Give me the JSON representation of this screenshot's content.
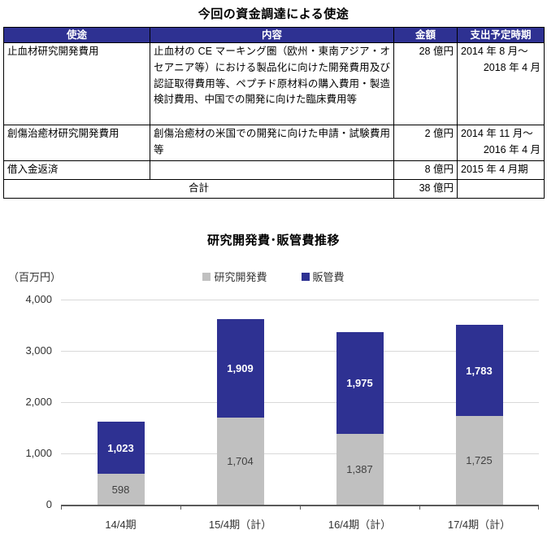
{
  "doc_title": "今回の資金調達による使途",
  "table": {
    "headers": [
      "使途",
      "内容",
      "金額",
      "支出予定時期"
    ],
    "rows": [
      {
        "use": "止血材研究開発費用",
        "detail": "止血材の CE マーキング圏（欧州・東南アジア・オセアニア等）における製品化に向けた開発費用及び認証取得費用等、ペプチド原材料の購入費用・製造検討費用、中国での開発に向けた臨床費用等",
        "amount": "28 億円",
        "period_line1": "2014 年 8 月～",
        "period_line2": "2018 年 4 月"
      },
      {
        "use": "創傷治癒材研究開発費用",
        "detail": "創傷治癒材の米国での開発に向けた申請・試験費用等",
        "amount": "2 億円",
        "period_line1": "2014 年 11 月～",
        "period_line2": "2016 年 4 月"
      },
      {
        "use": "借入金返済",
        "detail": "",
        "amount": "8 億円",
        "period_line1": "2015 年 4 月期",
        "period_line2": ""
      }
    ],
    "total_label": "合計",
    "total_amount": "38 億円"
  },
  "chart_data": {
    "type": "bar",
    "stacked": true,
    "title": "研究開発費･販管費推移",
    "unit_label": "（百万円）",
    "categories": [
      "14/4期",
      "15/4期（計）",
      "16/4期（計）",
      "17/4期（計）"
    ],
    "series": [
      {
        "name": "研究開発費",
        "color": "#C0C0C0",
        "label_color": "#404040",
        "values": [
          598,
          1704,
          1387,
          1725
        ]
      },
      {
        "name": "販管費",
        "color": "#2E3192",
        "label_color": "#FFFFFF",
        "values": [
          1023,
          1909,
          1975,
          1783
        ]
      }
    ],
    "ylim": [
      0,
      4000
    ],
    "yticks": [
      0,
      1000,
      2000,
      3000,
      4000
    ],
    "ytick_labels": [
      "0",
      "1,000",
      "2,000",
      "3,000",
      "4,000"
    ],
    "grid": true,
    "legend_position": "top",
    "colors": {
      "grid": "#D9D9D9",
      "axis": "#595959",
      "header_navy": "#2E3192"
    }
  }
}
